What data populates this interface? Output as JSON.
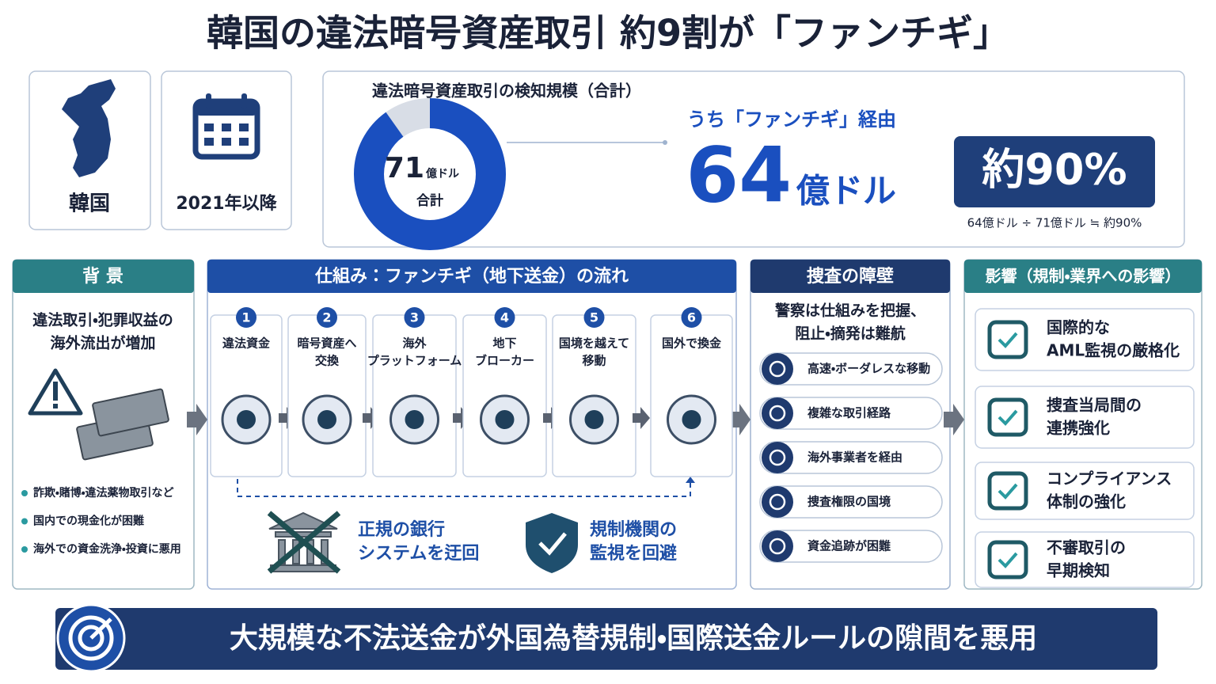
{
  "title": "韓国の違法暗号資産取引 約9割が「ファンチギ」",
  "country": "韓国",
  "period": "2021年以降",
  "summary": {
    "heading": "違法暗号資産取引の検知規模（合計）",
    "total": 71,
    "part": 64,
    "unit": "億ドル",
    "total_label": "合計",
    "part_heading": "うち「ファンチギ」経由",
    "share": "約90%",
    "formula": "64億ドル ÷ 71億ドル ≒ 約90%"
  },
  "background": {
    "heading": "背 景",
    "lead": [
      "違法取引・犯罪収益の",
      "海外流出が増加"
    ],
    "bullets": [
      "詐欺・賭博・違法薬物取引など",
      "国内での現金化が困難",
      "海外での資金洗浄・投資に悪用"
    ]
  },
  "mechanism": {
    "heading": "仕組み：ファンチギ（地下送金）の流れ",
    "steps": [
      {
        "number": 1,
        "label": [
          "違法資金"
        ]
      },
      {
        "number": 2,
        "label": [
          "暗号資産へ",
          "交換"
        ]
      },
      {
        "number": 3,
        "label": [
          "海外",
          "プラットフォーム"
        ]
      },
      {
        "number": 4,
        "label": [
          "地下",
          "ブローカー"
        ]
      },
      {
        "number": 5,
        "label": [
          "国境を越えて",
          "移動"
        ]
      },
      {
        "number": 6,
        "label": [
          "国外で換金"
        ]
      }
    ],
    "effects": [
      [
        "正規の銀行",
        "システムを迂回"
      ],
      [
        "規制機関の",
        "監視を回避"
      ]
    ]
  },
  "barriers": {
    "heading": "捜査の障壁",
    "lead": [
      "警察は仕組みを把握、",
      "阻止・摘発は難航"
    ],
    "items": [
      "高速・ボーダレスな移動",
      "複雑な取引経路",
      "海外事業者を経由",
      "捜査権限の国境",
      "資金追跡が困難"
    ]
  },
  "impact": {
    "heading": "影響（規制・業界への影響）",
    "items": [
      [
        "国際的な",
        "AML監視の厳格化"
      ],
      [
        "捜査当局間の",
        "連携強化"
      ],
      [
        "コンプライアンス",
        "体制の強化"
      ],
      [
        "不審取引の",
        "早期検知"
      ]
    ]
  },
  "banner": "大規模な不法送金が外国為替規制・国際送金ルールの隙間を悪用"
}
